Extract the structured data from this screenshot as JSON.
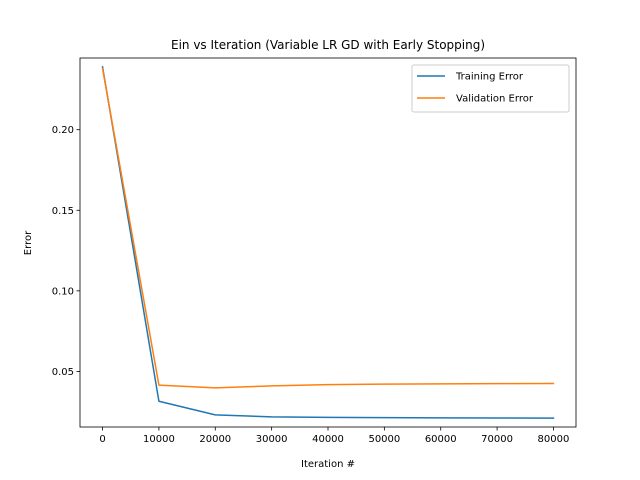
{
  "chart_data": {
    "type": "line",
    "title": "Ein vs Iteration (Variable LR GD with Early Stopping)",
    "xlabel": "Iteration #",
    "ylabel": "Error",
    "xlim": [
      -4000,
      84000
    ],
    "ylim": [
      0.0155,
      0.2445
    ],
    "xticks": [
      0,
      10000,
      20000,
      30000,
      40000,
      50000,
      60000,
      70000,
      80000
    ],
    "xtick_labels": [
      "0",
      "10000",
      "20000",
      "30000",
      "40000",
      "50000",
      "60000",
      "70000",
      "80000"
    ],
    "yticks": [
      0.05,
      0.1,
      0.15,
      0.2
    ],
    "ytick_labels": [
      "0.05",
      "0.10",
      "0.15",
      "0.20"
    ],
    "grid": false,
    "legend_position": "top-right",
    "x": [
      0,
      10000,
      20000,
      30000,
      40000,
      50000,
      60000,
      70000,
      80000
    ],
    "series": [
      {
        "name": "Training Error",
        "color": "#1f77b4",
        "values": [
          0.239,
          0.0315,
          0.023,
          0.0218,
          0.0215,
          0.0213,
          0.0212,
          0.0211,
          0.021
        ]
      },
      {
        "name": "Validation Error",
        "color": "#ff7f0e",
        "values": [
          0.238,
          0.0415,
          0.0398,
          0.041,
          0.0418,
          0.0421,
          0.0423,
          0.0424,
          0.0425
        ]
      }
    ]
  }
}
